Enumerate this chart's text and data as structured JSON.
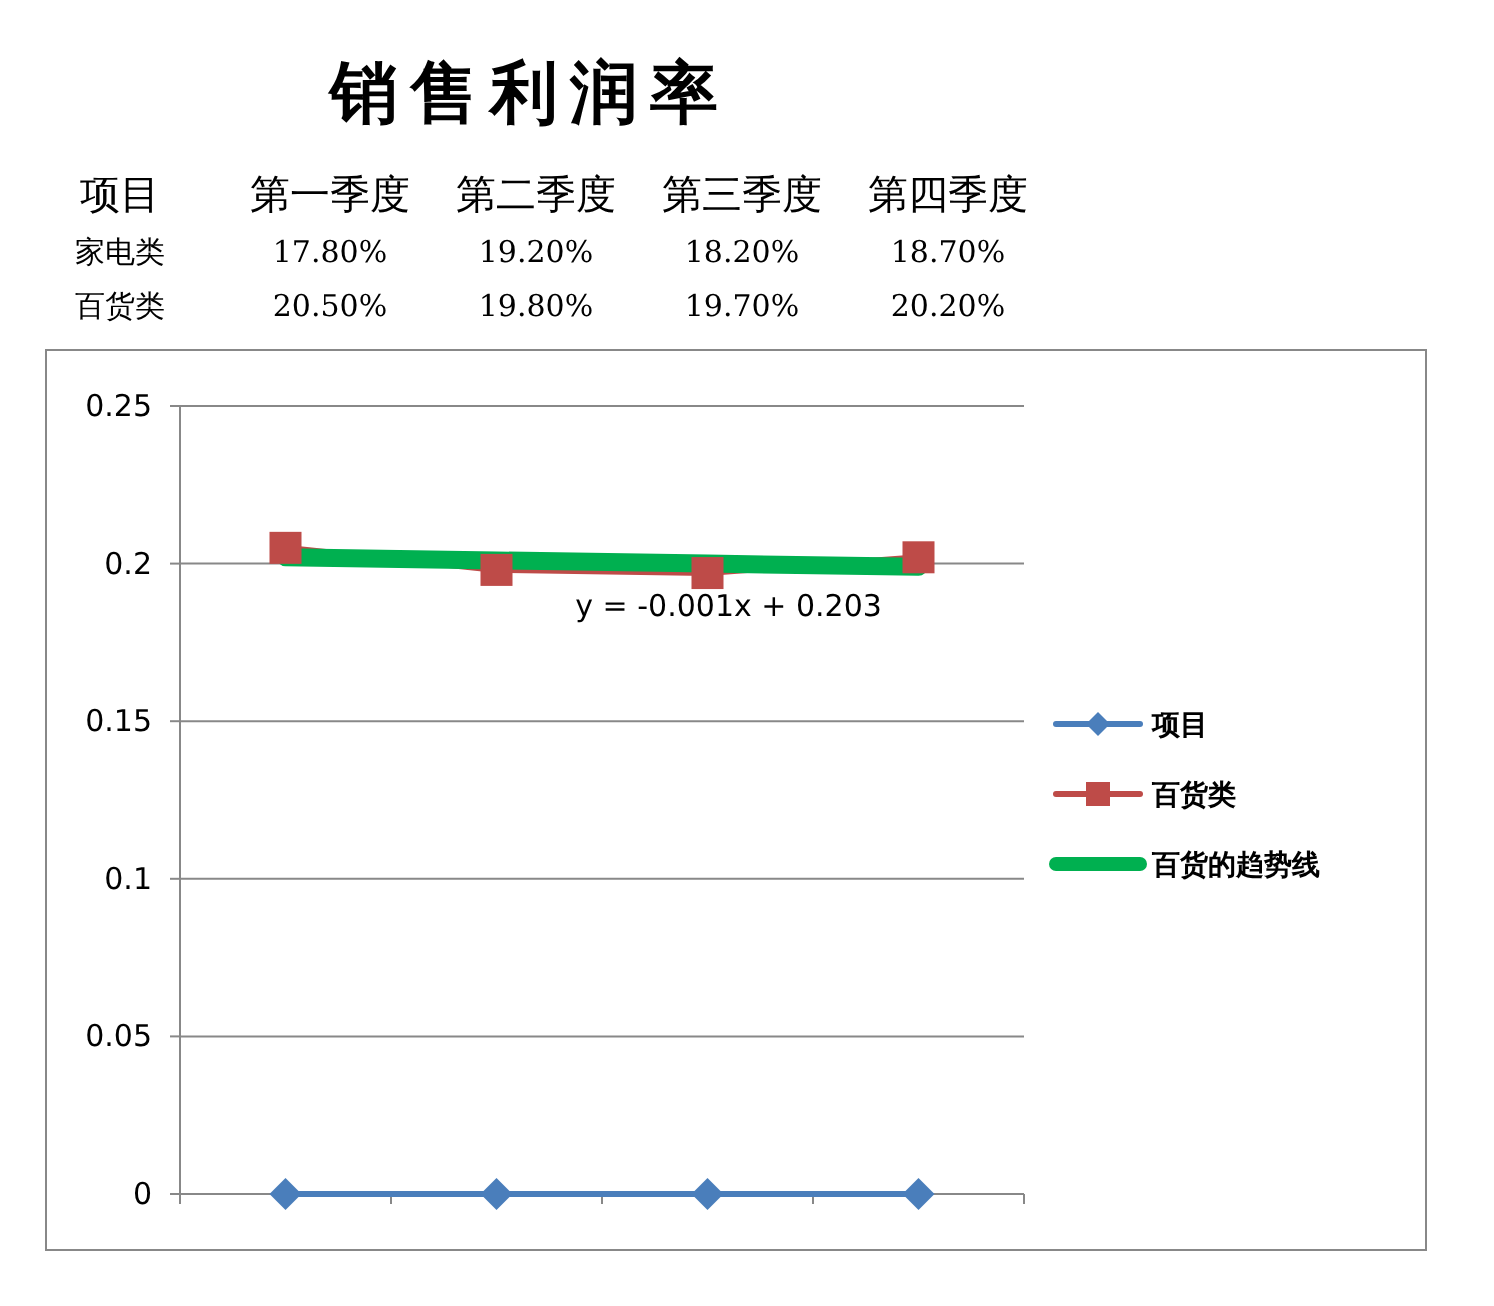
{
  "chart_data": {
    "type": "line",
    "title": "销售利润率",
    "annotations": [
      "项目",
      "第一季度",
      "第二季度",
      "第三季度",
      "第四季度",
      "家电类",
      "17.80%",
      "19.20%",
      "18.20%",
      "18.70%",
      "百货类",
      "20.50%",
      "19.80%",
      "19.70%",
      "20.20%",
      {
        "text": "y =  -0.001x + 0.203",
        "y": 0.2
      }
    ],
    "categories": [
      null,
      null,
      null,
      null
    ],
    "series": [
      {
        "name": "项目",
        "color": "#4a7ebb",
        "marker": "diamond",
        "values": [
          0,
          0,
          0,
          0
        ]
      },
      {
        "name": "百货类",
        "color": "#be4b48",
        "marker": "square",
        "values": [
          0.205,
          0.198,
          0.197,
          0.202
        ]
      },
      {
        "name": "百货的趋势线",
        "color": "#00b050",
        "marker": "none",
        "values": [
          0.202,
          0.201,
          0.2,
          0.199
        ]
      }
    ],
    "ylim": [
      0,
      0.25
    ],
    "yticks": [
      0,
      0.05,
      0.1,
      0.15,
      0.2,
      0.25
    ],
    "grid": "y",
    "legend": "right"
  }
}
